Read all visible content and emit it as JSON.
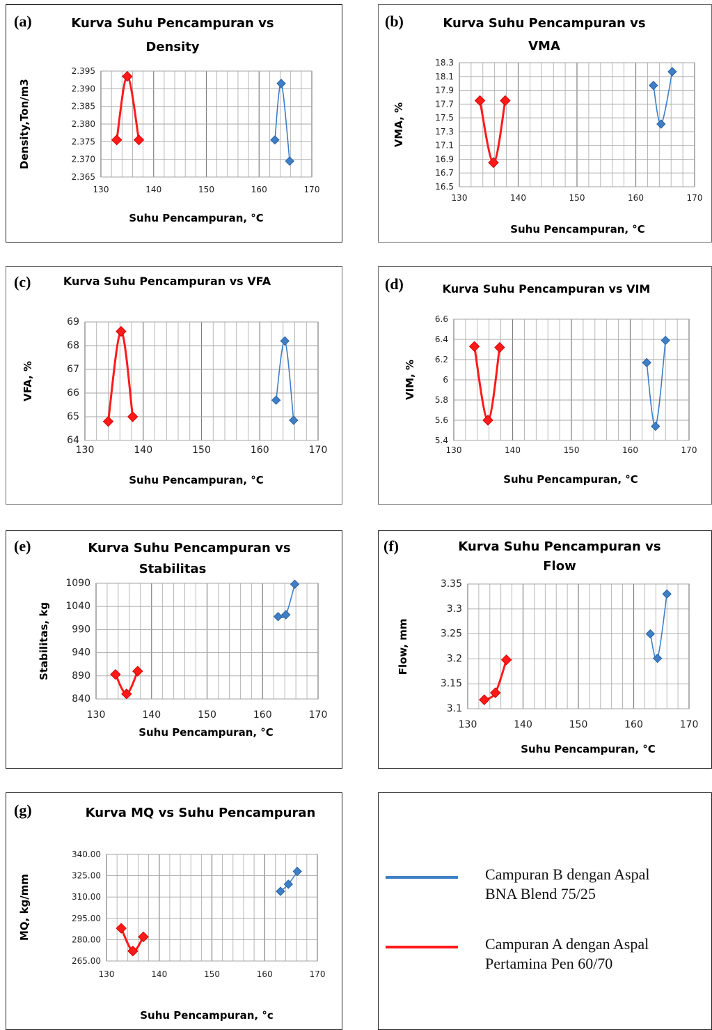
{
  "colors": {
    "series_b": "#3f7fc6",
    "series_a": "#ff1a1a",
    "grid": "#a6a6a6"
  },
  "legend": {
    "items": [
      {
        "color": "#3f7fc6",
        "line1": "Campuran B dengan Aspal",
        "line2": "BNA Blend 75/25"
      },
      {
        "color": "#ff1a1a",
        "line1": "Campuran A dengan Aspal",
        "line2": "Pertamina Pen 60/70"
      }
    ]
  },
  "chart_data": [
    {
      "id": "a",
      "letter": "(a)",
      "type": "scatter",
      "title_lines": [
        "Kurva Suhu Pencampuran vs",
        "Density"
      ],
      "xlabel": "Suhu Pencampuran, °C",
      "ylabel": "Density,Ton/m3",
      "xlim": [
        130,
        170
      ],
      "xticks": [
        130,
        140,
        150,
        160,
        170
      ],
      "ylim": [
        2.365,
        2.395
      ],
      "yticks": [
        "2.365",
        "2.370",
        "2.375",
        "2.380",
        "2.385",
        "2.390",
        "2.395"
      ],
      "series": [
        {
          "color": "#ff1a1a",
          "marker_size": 7,
          "points": [
            [
              133,
              2.3755
            ],
            [
              135,
              2.3935
            ],
            [
              137.2,
              2.3755
            ]
          ]
        },
        {
          "color": "#3f7fc6",
          "marker_size": 6,
          "points": [
            [
              163,
              2.3755
            ],
            [
              164.2,
              2.3915
            ],
            [
              165.8,
              2.3695
            ]
          ]
        }
      ]
    },
    {
      "id": "b",
      "letter": "(b)",
      "type": "scatter",
      "title_lines": [
        "Kurva Suhu Pencampuran vs",
        "VMA"
      ],
      "xlabel": "Suhu Pencampuran, °C",
      "ylabel": "VMA, %",
      "xlim": [
        130,
        170
      ],
      "xticks": [
        130,
        140,
        150,
        160,
        170
      ],
      "ylim": [
        16.5,
        18.3
      ],
      "yticks": [
        "16.5",
        "16.7",
        "16.9",
        "17.1",
        "17.3",
        "17.5",
        "17.7",
        "17.9",
        "18.1",
        "18.3"
      ],
      "series": [
        {
          "color": "#ff1a1a",
          "marker_size": 7,
          "points": [
            [
              133.5,
              17.75
            ],
            [
              135.8,
              16.85
            ],
            [
              137.8,
              17.75
            ]
          ]
        },
        {
          "color": "#3f7fc6",
          "marker_size": 6,
          "points": [
            [
              163,
              17.97
            ],
            [
              164.3,
              17.41
            ],
            [
              166.2,
              18.17
            ]
          ]
        }
      ]
    },
    {
      "id": "c",
      "letter": "(c)",
      "type": "scatter",
      "title_lines": [
        "Kurva Suhu Pencampuran vs VFA"
      ],
      "xlabel": "Suhu Pencampuran, °C",
      "ylabel": "VFA, %",
      "xlim": [
        130,
        170
      ],
      "xticks": [
        130,
        140,
        150,
        160,
        170
      ],
      "ylim": [
        64,
        69
      ],
      "yticks": [
        "64",
        "65",
        "66",
        "67",
        "68",
        "69"
      ],
      "series": [
        {
          "color": "#ff1a1a",
          "marker_size": 7,
          "points": [
            [
              134,
              64.8
            ],
            [
              136.2,
              68.6
            ],
            [
              138.2,
              65.0
            ]
          ]
        },
        {
          "color": "#3f7fc6",
          "marker_size": 6,
          "points": [
            [
              162.8,
              65.7
            ],
            [
              164.3,
              68.2
            ],
            [
              165.8,
              64.85
            ]
          ]
        }
      ]
    },
    {
      "id": "d",
      "letter": "(d)",
      "type": "scatter",
      "title_lines": [
        "Kurva Suhu Pencampuran vs VIM"
      ],
      "xlabel": "Suhu Pencampuran, °C",
      "ylabel": "VIM, %",
      "xlim": [
        130,
        170
      ],
      "xticks": [
        130,
        140,
        150,
        160,
        170
      ],
      "ylim": [
        5.4,
        6.6
      ],
      "yticks": [
        "5.4",
        "5.6",
        "5.8",
        "6",
        "6.2",
        "6.4",
        "6.6"
      ],
      "series": [
        {
          "color": "#ff1a1a",
          "marker_size": 7,
          "points": [
            [
              133.5,
              6.33
            ],
            [
              135.8,
              5.6
            ],
            [
              137.8,
              6.32
            ]
          ]
        },
        {
          "color": "#3f7fc6",
          "marker_size": 6,
          "points": [
            [
              162.8,
              6.17
            ],
            [
              164.3,
              5.54
            ],
            [
              166,
              6.39
            ]
          ]
        }
      ]
    },
    {
      "id": "e",
      "letter": "(e)",
      "type": "scatter",
      "title_lines": [
        "Kurva Suhu Pencampuran vs",
        "Stabilitas"
      ],
      "xlabel": "Suhu Pencampuran, °C",
      "ylabel": "Stabilitas, kg",
      "xlim": [
        130,
        170
      ],
      "xticks": [
        130,
        140,
        150,
        160,
        170
      ],
      "ylim": [
        840,
        1090
      ],
      "yticks": [
        "840",
        "890",
        "940",
        "990",
        "1040",
        "1090"
      ],
      "series": [
        {
          "color": "#ff1a1a",
          "marker_size": 7,
          "points": [
            [
              133.5,
              893
            ],
            [
              135.5,
              851
            ],
            [
              137.5,
              900
            ]
          ]
        },
        {
          "color": "#3f7fc6",
          "marker_size": 6,
          "points": [
            [
              162.8,
              1018
            ],
            [
              164.2,
              1022
            ],
            [
              165.8,
              1088
            ]
          ]
        }
      ]
    },
    {
      "id": "f",
      "letter": "(f)",
      "type": "scatter",
      "title_lines": [
        "Kurva Suhu Pencampuran vs",
        "Flow"
      ],
      "xlabel": "Suhu Pencampuran, °C",
      "ylabel": "Flow, mm",
      "xlim": [
        130,
        170
      ],
      "xticks": [
        130,
        140,
        150,
        160,
        170
      ],
      "ylim": [
        3.1,
        3.35
      ],
      "yticks": [
        "3.1",
        "3.15",
        "3.2",
        "3.25",
        "3.3",
        "3.35"
      ],
      "series": [
        {
          "color": "#ff1a1a",
          "marker_size": 7,
          "points": [
            [
              133,
              3.118
            ],
            [
              135,
              3.132
            ],
            [
              137,
              3.198
            ]
          ]
        },
        {
          "color": "#3f7fc6",
          "marker_size": 6,
          "points": [
            [
              163,
              3.25
            ],
            [
              164.3,
              3.201
            ],
            [
              166,
              3.33
            ]
          ]
        }
      ]
    },
    {
      "id": "g",
      "letter": "(g)",
      "type": "scatter",
      "title_lines": [
        "Kurva MQ vs Suhu Pencampuran"
      ],
      "xlabel": "Suhu Pencampuran, °c",
      "ylabel": "MQ, kg/mm",
      "xlim": [
        130,
        170
      ],
      "xticks": [
        130,
        140,
        150,
        160,
        170
      ],
      "ylim": [
        265,
        340
      ],
      "yticks": [
        "265.00",
        "280.00",
        "295.00",
        "310.00",
        "325.00",
        "340.00"
      ],
      "series": [
        {
          "color": "#ff1a1a",
          "marker_size": 7,
          "points": [
            [
              132.8,
              288
            ],
            [
              135,
              272
            ],
            [
              137,
              282
            ]
          ]
        },
        {
          "color": "#3f7fc6",
          "marker_size": 6,
          "points": [
            [
              163,
              314
            ],
            [
              164.5,
              319
            ],
            [
              166.2,
              328
            ]
          ]
        }
      ]
    }
  ]
}
